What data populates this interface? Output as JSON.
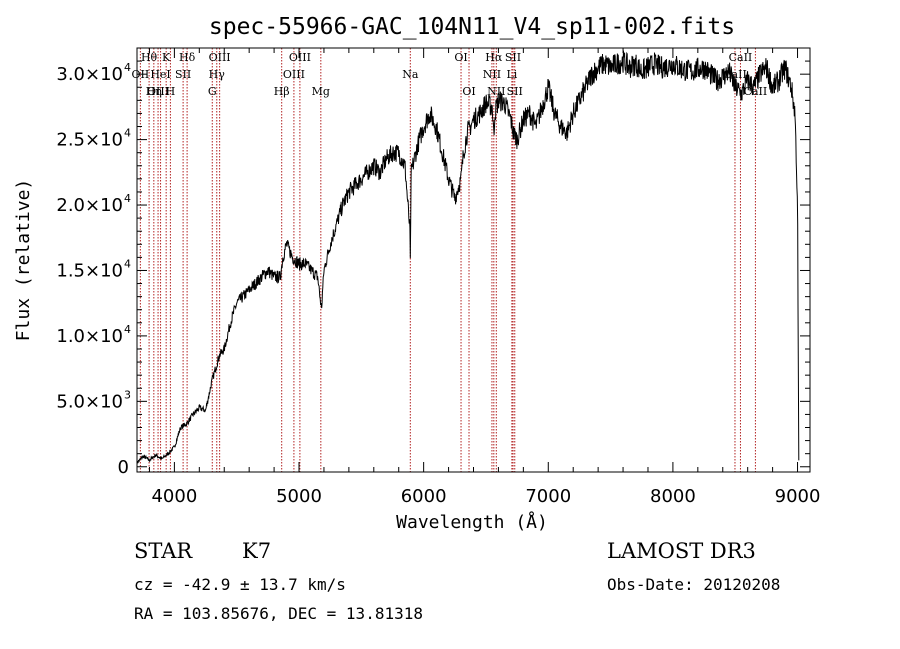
{
  "chart_data": {
    "type": "line",
    "title": "spec-55966-GAC_104N11_V4_sp11-002.fits",
    "xlabel": "Wavelength (Å)",
    "ylabel": "Flux (relative)",
    "xlim": [
      3700,
      9100
    ],
    "ylim": [
      -400,
      32000
    ],
    "x_ticks": [
      4000,
      5000,
      6000,
      7000,
      8000,
      9000
    ],
    "x_tick_labels": [
      "4000",
      "5000",
      "6000",
      "7000",
      "8000",
      "9000"
    ],
    "y_ticks": [
      0,
      5000,
      10000,
      15000,
      20000,
      25000,
      30000
    ],
    "y_tick_labels": [
      {
        "mant": "0",
        "exp": ""
      },
      {
        "mant": "5.0×10",
        "exp": "3"
      },
      {
        "mant": "1.0×10",
        "exp": "4"
      },
      {
        "mant": "1.5×10",
        "exp": "4"
      },
      {
        "mant": "2.0×10",
        "exp": "4"
      },
      {
        "mant": "2.5×10",
        "exp": "4"
      },
      {
        "mant": "3.0×10",
        "exp": "4"
      }
    ],
    "series": [
      {
        "name": "flux",
        "x": [
          3700,
          3750,
          3800,
          3850,
          3900,
          3950,
          4000,
          4050,
          4100,
          4150,
          4200,
          4250,
          4300,
          4330,
          4360,
          4400,
          4450,
          4500,
          4550,
          4600,
          4650,
          4700,
          4750,
          4800,
          4850,
          4870,
          4900,
          4950,
          5000,
          5050,
          5100,
          5150,
          5180,
          5200,
          5250,
          5300,
          5350,
          5400,
          5450,
          5500,
          5550,
          5600,
          5650,
          5700,
          5750,
          5800,
          5850,
          5890,
          5893,
          5896,
          5900,
          5950,
          6000,
          6050,
          6100,
          6150,
          6200,
          6250,
          6300,
          6320,
          6350,
          6400,
          6450,
          6500,
          6550,
          6560,
          6563,
          6570,
          6600,
          6650,
          6700,
          6720,
          6750,
          6800,
          6850,
          6900,
          6950,
          7000,
          7050,
          7100,
          7150,
          7200,
          7250,
          7300,
          7350,
          7400,
          7450,
          7500,
          7550,
          7600,
          7650,
          7700,
          7750,
          7800,
          7850,
          7900,
          7950,
          8000,
          8050,
          8100,
          8150,
          8200,
          8250,
          8300,
          8350,
          8400,
          8450,
          8500,
          8550,
          8600,
          8650,
          8700,
          8750,
          8800,
          8850,
          8900,
          8950,
          8980,
          9000,
          9010
        ],
        "y": [
          300,
          800,
          500,
          900,
          600,
          1000,
          1500,
          3000,
          3300,
          4000,
          4500,
          4300,
          6500,
          7500,
          8500,
          9000,
          11000,
          12500,
          13000,
          13500,
          14000,
          14500,
          15000,
          14500,
          14500,
          16000,
          17000,
          16000,
          15500,
          15500,
          15000,
          14500,
          12000,
          15000,
          17000,
          18500,
          20000,
          21000,
          21500,
          22000,
          22500,
          23000,
          22500,
          23500,
          24000,
          24000,
          23000,
          18000,
          15500,
          19000,
          22500,
          24500,
          26000,
          27000,
          26000,
          24000,
          22000,
          20500,
          22000,
          24000,
          25500,
          26500,
          27000,
          27800,
          27500,
          26000,
          25000,
          27000,
          28000,
          27800,
          26500,
          25500,
          25000,
          26500,
          27000,
          26000,
          27500,
          29000,
          27000,
          26000,
          25500,
          27000,
          28000,
          29000,
          30000,
          30500,
          30800,
          30500,
          30800,
          31000,
          30500,
          30800,
          30200,
          30500,
          30800,
          30500,
          30600,
          30800,
          30500,
          30300,
          30200,
          30400,
          30500,
          30000,
          29500,
          29800,
          30200,
          29000,
          28500,
          29500,
          29000,
          30000,
          30500,
          29000,
          29500,
          30500,
          29000,
          27000,
          20000,
          500
        ]
      }
    ],
    "lines": [
      {
        "name": "Hθ",
        "x": 3797,
        "row": 0
      },
      {
        "name": "K",
        "x": 3934,
        "row": 0
      },
      {
        "name": "Hδ",
        "x": 4102,
        "row": 0
      },
      {
        "name": "OIII",
        "x": 4363,
        "row": 0
      },
      {
        "name": "OIII",
        "x": 5007,
        "row": 0
      },
      {
        "name": "OI",
        "x": 6300,
        "row": 0
      },
      {
        "name": "Hα",
        "x": 6563,
        "row": 0
      },
      {
        "name": "SII",
        "x": 6717,
        "row": 0
      },
      {
        "name": "CaII",
        "x": 8542,
        "row": 0
      },
      {
        "name": "OII",
        "x": 3727,
        "row": 1
      },
      {
        "name": "HeI",
        "x": 3889,
        "row": 1
      },
      {
        "name": "SII",
        "x": 4070,
        "row": 1
      },
      {
        "name": "Hγ",
        "x": 4340,
        "row": 1
      },
      {
        "name": "OIII",
        "x": 4959,
        "row": 1
      },
      {
        "name": "Na",
        "x": 5893,
        "row": 1
      },
      {
        "name": "NII",
        "x": 6548,
        "row": 1
      },
      {
        "name": "Li",
        "x": 6708,
        "row": 1
      },
      {
        "name": "CaII",
        "x": 8498,
        "row": 1
      },
      {
        "name": "OIII",
        "x": 3869,
        "row": 2
      },
      {
        "name": "Hη",
        "x": 3835,
        "row": 2
      },
      {
        "name": "H",
        "x": 3968,
        "row": 2
      },
      {
        "name": "G",
        "x": 4304,
        "row": 2
      },
      {
        "name": "Hβ",
        "x": 4861,
        "row": 2
      },
      {
        "name": "Mg",
        "x": 5175,
        "row": 2
      },
      {
        "name": "OI",
        "x": 6364,
        "row": 2
      },
      {
        "name": "NII",
        "x": 6583,
        "row": 2
      },
      {
        "name": "SII",
        "x": 6731,
        "row": 2
      },
      {
        "name": "CaII",
        "x": 8662,
        "row": 2
      }
    ]
  },
  "info": {
    "class": "STAR",
    "subclass": "K7",
    "cz": "cz = -42.9 ± 13.7 km/s",
    "radec": "RA = 103.85676, DEC =  13.81318",
    "survey": "LAMOST DR3",
    "obsdate": "Obs-Date: 20120208"
  },
  "colors": {
    "axis": "#000000",
    "spectrum": "#000000",
    "line_marker": "#b22222"
  }
}
